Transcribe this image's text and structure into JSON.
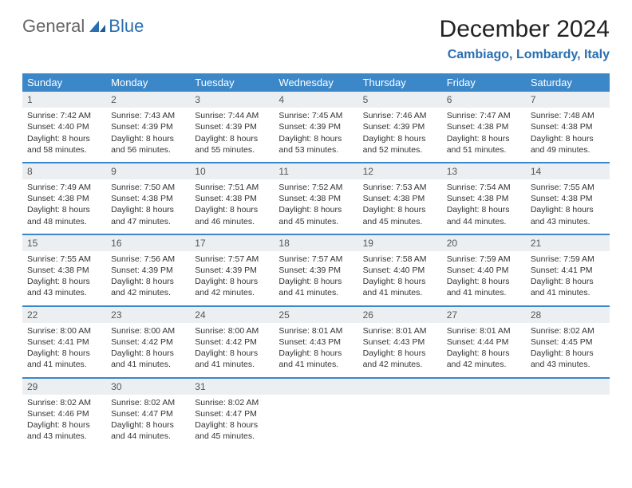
{
  "logo": {
    "text1": "General",
    "text2": "Blue"
  },
  "title": "December 2024",
  "location": "Cambiago, Lombardy, Italy",
  "colors": {
    "header_bg": "#3b87c8",
    "header_text": "#ffffff",
    "daynum_bg": "#eceff1",
    "row_divider": "#3b87c8",
    "brand_blue": "#2a6fb0"
  },
  "weekdays": [
    "Sunday",
    "Monday",
    "Tuesday",
    "Wednesday",
    "Thursday",
    "Friday",
    "Saturday"
  ],
  "weeks": [
    [
      {
        "day": "1",
        "sunrise": "Sunrise: 7:42 AM",
        "sunset": "Sunset: 4:40 PM",
        "daylight": "Daylight: 8 hours and 58 minutes."
      },
      {
        "day": "2",
        "sunrise": "Sunrise: 7:43 AM",
        "sunset": "Sunset: 4:39 PM",
        "daylight": "Daylight: 8 hours and 56 minutes."
      },
      {
        "day": "3",
        "sunrise": "Sunrise: 7:44 AM",
        "sunset": "Sunset: 4:39 PM",
        "daylight": "Daylight: 8 hours and 55 minutes."
      },
      {
        "day": "4",
        "sunrise": "Sunrise: 7:45 AM",
        "sunset": "Sunset: 4:39 PM",
        "daylight": "Daylight: 8 hours and 53 minutes."
      },
      {
        "day": "5",
        "sunrise": "Sunrise: 7:46 AM",
        "sunset": "Sunset: 4:39 PM",
        "daylight": "Daylight: 8 hours and 52 minutes."
      },
      {
        "day": "6",
        "sunrise": "Sunrise: 7:47 AM",
        "sunset": "Sunset: 4:38 PM",
        "daylight": "Daylight: 8 hours and 51 minutes."
      },
      {
        "day": "7",
        "sunrise": "Sunrise: 7:48 AM",
        "sunset": "Sunset: 4:38 PM",
        "daylight": "Daylight: 8 hours and 49 minutes."
      }
    ],
    [
      {
        "day": "8",
        "sunrise": "Sunrise: 7:49 AM",
        "sunset": "Sunset: 4:38 PM",
        "daylight": "Daylight: 8 hours and 48 minutes."
      },
      {
        "day": "9",
        "sunrise": "Sunrise: 7:50 AM",
        "sunset": "Sunset: 4:38 PM",
        "daylight": "Daylight: 8 hours and 47 minutes."
      },
      {
        "day": "10",
        "sunrise": "Sunrise: 7:51 AM",
        "sunset": "Sunset: 4:38 PM",
        "daylight": "Daylight: 8 hours and 46 minutes."
      },
      {
        "day": "11",
        "sunrise": "Sunrise: 7:52 AM",
        "sunset": "Sunset: 4:38 PM",
        "daylight": "Daylight: 8 hours and 45 minutes."
      },
      {
        "day": "12",
        "sunrise": "Sunrise: 7:53 AM",
        "sunset": "Sunset: 4:38 PM",
        "daylight": "Daylight: 8 hours and 45 minutes."
      },
      {
        "day": "13",
        "sunrise": "Sunrise: 7:54 AM",
        "sunset": "Sunset: 4:38 PM",
        "daylight": "Daylight: 8 hours and 44 minutes."
      },
      {
        "day": "14",
        "sunrise": "Sunrise: 7:55 AM",
        "sunset": "Sunset: 4:38 PM",
        "daylight": "Daylight: 8 hours and 43 minutes."
      }
    ],
    [
      {
        "day": "15",
        "sunrise": "Sunrise: 7:55 AM",
        "sunset": "Sunset: 4:38 PM",
        "daylight": "Daylight: 8 hours and 43 minutes."
      },
      {
        "day": "16",
        "sunrise": "Sunrise: 7:56 AM",
        "sunset": "Sunset: 4:39 PM",
        "daylight": "Daylight: 8 hours and 42 minutes."
      },
      {
        "day": "17",
        "sunrise": "Sunrise: 7:57 AM",
        "sunset": "Sunset: 4:39 PM",
        "daylight": "Daylight: 8 hours and 42 minutes."
      },
      {
        "day": "18",
        "sunrise": "Sunrise: 7:57 AM",
        "sunset": "Sunset: 4:39 PM",
        "daylight": "Daylight: 8 hours and 41 minutes."
      },
      {
        "day": "19",
        "sunrise": "Sunrise: 7:58 AM",
        "sunset": "Sunset: 4:40 PM",
        "daylight": "Daylight: 8 hours and 41 minutes."
      },
      {
        "day": "20",
        "sunrise": "Sunrise: 7:59 AM",
        "sunset": "Sunset: 4:40 PM",
        "daylight": "Daylight: 8 hours and 41 minutes."
      },
      {
        "day": "21",
        "sunrise": "Sunrise: 7:59 AM",
        "sunset": "Sunset: 4:41 PM",
        "daylight": "Daylight: 8 hours and 41 minutes."
      }
    ],
    [
      {
        "day": "22",
        "sunrise": "Sunrise: 8:00 AM",
        "sunset": "Sunset: 4:41 PM",
        "daylight": "Daylight: 8 hours and 41 minutes."
      },
      {
        "day": "23",
        "sunrise": "Sunrise: 8:00 AM",
        "sunset": "Sunset: 4:42 PM",
        "daylight": "Daylight: 8 hours and 41 minutes."
      },
      {
        "day": "24",
        "sunrise": "Sunrise: 8:00 AM",
        "sunset": "Sunset: 4:42 PM",
        "daylight": "Daylight: 8 hours and 41 minutes."
      },
      {
        "day": "25",
        "sunrise": "Sunrise: 8:01 AM",
        "sunset": "Sunset: 4:43 PM",
        "daylight": "Daylight: 8 hours and 41 minutes."
      },
      {
        "day": "26",
        "sunrise": "Sunrise: 8:01 AM",
        "sunset": "Sunset: 4:43 PM",
        "daylight": "Daylight: 8 hours and 42 minutes."
      },
      {
        "day": "27",
        "sunrise": "Sunrise: 8:01 AM",
        "sunset": "Sunset: 4:44 PM",
        "daylight": "Daylight: 8 hours and 42 minutes."
      },
      {
        "day": "28",
        "sunrise": "Sunrise: 8:02 AM",
        "sunset": "Sunset: 4:45 PM",
        "daylight": "Daylight: 8 hours and 43 minutes."
      }
    ],
    [
      {
        "day": "29",
        "sunrise": "Sunrise: 8:02 AM",
        "sunset": "Sunset: 4:46 PM",
        "daylight": "Daylight: 8 hours and 43 minutes."
      },
      {
        "day": "30",
        "sunrise": "Sunrise: 8:02 AM",
        "sunset": "Sunset: 4:47 PM",
        "daylight": "Daylight: 8 hours and 44 minutes."
      },
      {
        "day": "31",
        "sunrise": "Sunrise: 8:02 AM",
        "sunset": "Sunset: 4:47 PM",
        "daylight": "Daylight: 8 hours and 45 minutes."
      },
      null,
      null,
      null,
      null
    ]
  ]
}
